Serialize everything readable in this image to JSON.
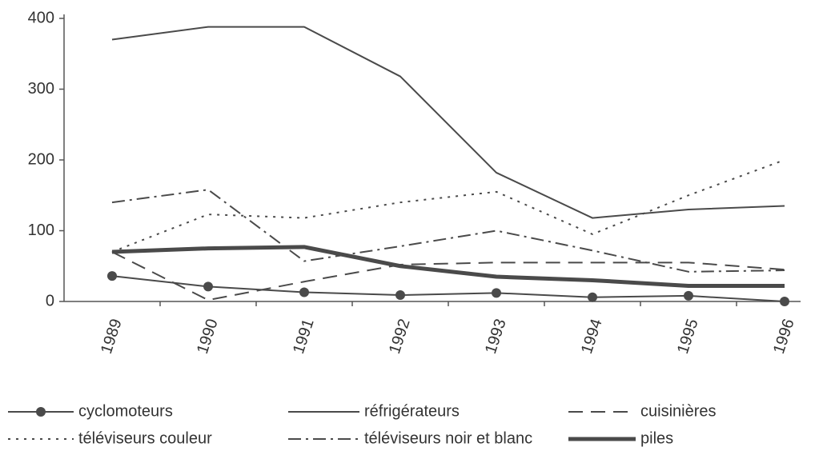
{
  "chart_data": {
    "type": "line",
    "categories": [
      "1989",
      "1990",
      "1991",
      "1992",
      "1993",
      "1994",
      "1995",
      "1996"
    ],
    "series": [
      {
        "name": "cyclomoteurs",
        "color": "#4a4a4a",
        "values": [
          36,
          21,
          13,
          9,
          12,
          6,
          8,
          0
        ]
      },
      {
        "name": "réfrigérateurs",
        "color": "#4a4a4a",
        "values": [
          370,
          388,
          388,
          318,
          182,
          118,
          130,
          135
        ]
      },
      {
        "name": "cuisinières",
        "color": "#4a4a4a",
        "values": [
          70,
          2,
          28,
          52,
          55,
          55,
          55,
          45
        ]
      },
      {
        "name": "téléviseurs couleur",
        "color": "#4a4a4a",
        "values": [
          70,
          123,
          118,
          140,
          155,
          95,
          150,
          200
        ]
      },
      {
        "name": "téléviseurs noir et blanc",
        "color": "#4a4a4a",
        "values": [
          140,
          158,
          57,
          78,
          100,
          72,
          42,
          44
        ]
      },
      {
        "name": "piles",
        "color": "#4a4a4a",
        "values": [
          70,
          75,
          77,
          50,
          35,
          30,
          22,
          22
        ]
      }
    ],
    "ylim": [
      0,
      400
    ],
    "yticks": [
      0,
      100,
      200,
      300,
      400
    ],
    "grid": false,
    "legend": "bottom"
  }
}
